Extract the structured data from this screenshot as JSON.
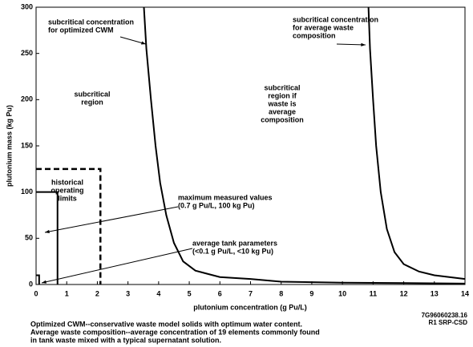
{
  "chart_data": {
    "type": "line",
    "xlabel": "plutonium concentration (g Pu/L)",
    "ylabel": "plutonium mass (kg Pu)",
    "xlim": [
      0,
      14
    ],
    "ylim": [
      0,
      300
    ],
    "xticks": [
      0,
      1,
      2,
      3,
      4,
      5,
      6,
      7,
      8,
      9,
      10,
      11,
      12,
      13,
      14
    ],
    "yticks": [
      0,
      50,
      100,
      150,
      200,
      250,
      300
    ],
    "color": "#000000",
    "series": [
      {
        "x": [
          3.52,
          3.6,
          3.75,
          3.9,
          4.05,
          4.25,
          4.5,
          4.8,
          5.2,
          6,
          7,
          8,
          10,
          14
        ],
        "values": [
          300,
          255,
          200,
          150,
          110,
          75,
          45,
          25,
          15,
          8,
          6,
          3,
          2,
          1
        ]
      },
      {
        "x": [
          10.85,
          10.9,
          11.0,
          11.1,
          11.25,
          11.45,
          11.7,
          12,
          12.5,
          13,
          14
        ],
        "values": [
          300,
          255,
          200,
          150,
          100,
          60,
          35,
          22,
          14,
          10,
          6
        ]
      }
    ],
    "boxes": [
      {
        "x": [
          0,
          2.1
        ],
        "y": [
          0,
          125
        ],
        "dashed": true
      },
      {
        "x": [
          0,
          0.7
        ],
        "y": [
          0,
          100
        ],
        "dashed": false
      },
      {
        "x": [
          0,
          0.1
        ],
        "y": [
          0,
          10
        ],
        "dashed": false
      }
    ],
    "annotations": [
      {
        "lines": [
          "subcritical concentration",
          "for optimized CWM"
        ]
      },
      {
        "lines": [
          "subcritical concentration",
          "for average waste",
          "composition"
        ]
      },
      {
        "lines": [
          "subcritical",
          "region"
        ]
      },
      {
        "lines": [
          "subcritical",
          "region if",
          "waste is",
          "average",
          "composition"
        ]
      },
      {
        "lines": [
          "historical",
          "operating",
          "limits"
        ]
      },
      {
        "lines": [
          "maximum measured values",
          "(0.7 g Pu/L, 100 kg Pu)"
        ]
      },
      {
        "lines": [
          "average tank parameters",
          "(<0.1 g Pu/L, <10 kg Pu)"
        ]
      }
    ],
    "figure_id": [
      "7G96060238.16",
      "R1   SRP-CSD"
    ],
    "notes": [
      "Optimized CWM--conservative waste model solids with optimum water content.",
      "Average waste composition--average concentration of 19 elements commonly found",
      "in tank waste mixed with a typical supernatant solution."
    ]
  }
}
